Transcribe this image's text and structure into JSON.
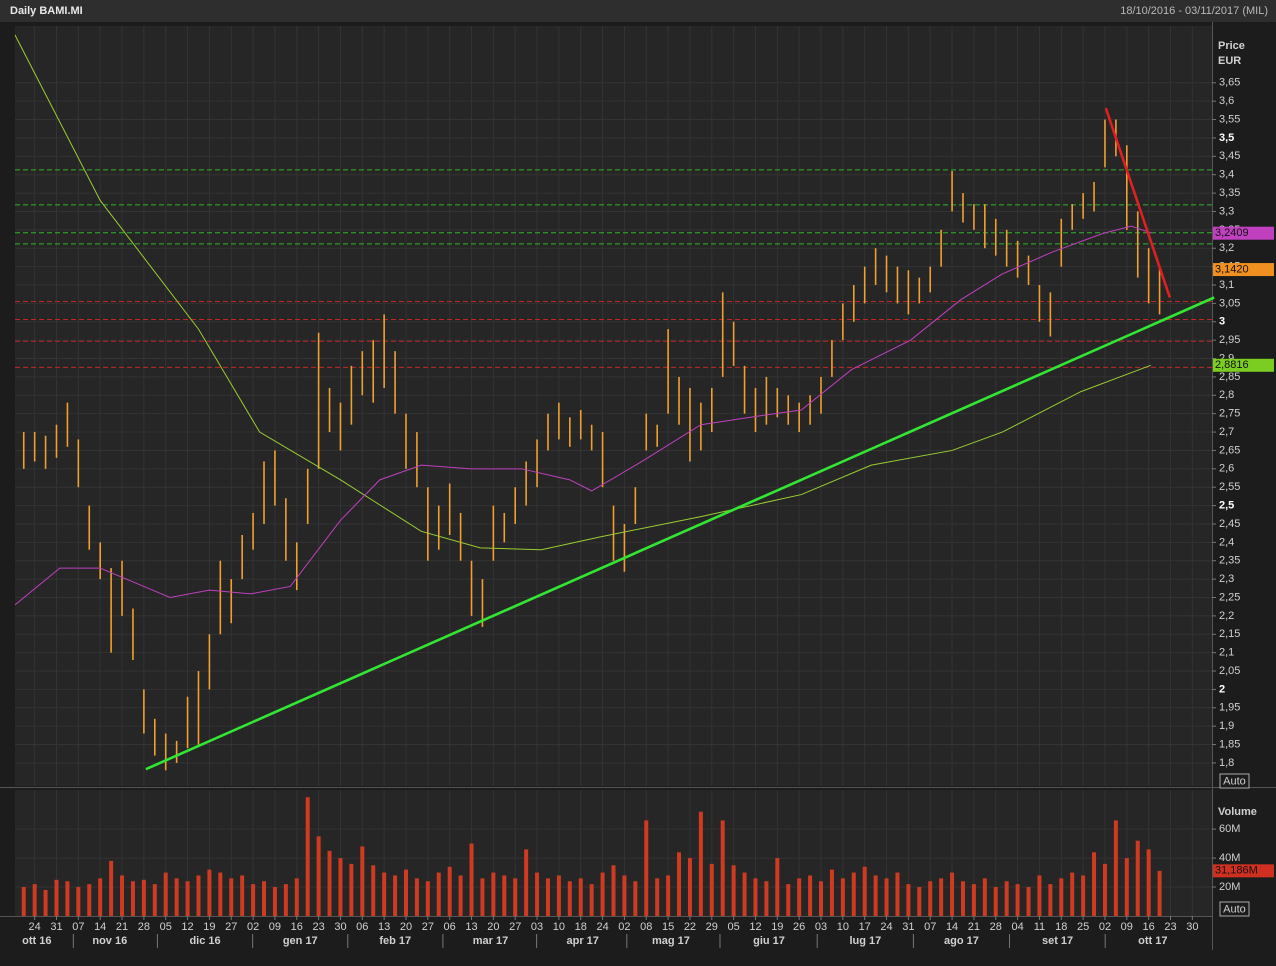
{
  "header": {
    "title": "Daily BAMI.MI",
    "range": "18/10/2016 - 03/11/2017 (MIL)"
  },
  "chart_data": [
    {
      "type": "ohlc",
      "y_label": "Price",
      "y_unit": "EUR",
      "color": "#f0a030",
      "grid": true,
      "xlim": [
        -0.9,
        53.9
      ],
      "ylim": [
        1.74,
        3.78
      ],
      "x": [
        -0.5,
        0,
        0.5,
        1,
        1.5,
        2,
        2.5,
        3,
        3.5,
        4,
        4.5,
        5,
        5.5,
        6,
        6.5,
        7,
        7.5,
        8,
        8.5,
        9,
        9.5,
        10,
        10.5,
        11,
        11.5,
        12,
        12.5,
        13,
        13.5,
        14,
        14.5,
        15,
        15.5,
        16,
        16.5,
        17,
        17.5,
        18,
        18.5,
        19,
        19.5,
        20,
        20.5,
        21,
        21.5,
        22,
        22.5,
        23,
        23.5,
        24,
        24.5,
        25,
        25.5,
        26,
        26.5,
        27,
        27.5,
        28,
        28.5,
        29,
        29.5,
        30,
        30.5,
        31,
        31.5,
        32,
        32.5,
        33,
        33.5,
        34,
        34.5,
        35,
        35.5,
        36,
        36.5,
        37,
        37.5,
        38,
        38.5,
        39,
        39.5,
        40,
        40.5,
        41,
        41.5,
        42,
        42.5,
        43,
        43.5,
        44,
        44.5,
        45,
        45.5,
        46,
        46.5,
        47,
        47.5,
        48,
        48.5,
        49,
        49.5,
        50,
        50.5,
        51,
        51.5
      ],
      "high": [
        2.7,
        2.7,
        2.69,
        2.72,
        2.78,
        2.68,
        2.5,
        2.4,
        2.33,
        2.35,
        2.22,
        2.0,
        1.92,
        1.88,
        1.86,
        1.98,
        2.05,
        2.15,
        2.35,
        2.3,
        2.42,
        2.48,
        2.62,
        2.65,
        2.52,
        2.4,
        2.6,
        2.97,
        2.82,
        2.78,
        2.88,
        2.92,
        2.95,
        3.02,
        2.92,
        2.75,
        2.7,
        2.55,
        2.5,
        2.56,
        2.48,
        2.35,
        2.3,
        2.5,
        2.48,
        2.55,
        2.62,
        2.68,
        2.75,
        2.78,
        2.74,
        2.76,
        2.72,
        2.7,
        2.5,
        2.45,
        2.55,
        2.75,
        2.72,
        2.98,
        2.85,
        2.82,
        2.78,
        2.82,
        3.08,
        3.0,
        2.88,
        2.82,
        2.85,
        2.82,
        2.8,
        2.78,
        2.8,
        2.85,
        2.95,
        3.05,
        3.1,
        3.15,
        3.2,
        3.18,
        3.15,
        3.14,
        3.12,
        3.15,
        3.25,
        3.41,
        3.35,
        3.32,
        3.32,
        3.28,
        3.25,
        3.22,
        3.18,
        3.1,
        3.08,
        3.28,
        3.32,
        3.35,
        3.38,
        3.55,
        3.55,
        3.48,
        3.3,
        3.2,
        3.15
      ],
      "low": [
        2.6,
        2.62,
        2.6,
        2.63,
        2.66,
        2.55,
        2.38,
        2.3,
        2.1,
        2.2,
        2.08,
        1.88,
        1.82,
        1.78,
        1.8,
        1.84,
        1.85,
        2.0,
        2.15,
        2.18,
        2.3,
        2.38,
        2.45,
        2.5,
        2.35,
        2.27,
        2.45,
        2.6,
        2.7,
        2.65,
        2.72,
        2.8,
        2.78,
        2.82,
        2.75,
        2.6,
        2.55,
        2.35,
        2.38,
        2.42,
        2.35,
        2.2,
        2.17,
        2.35,
        2.4,
        2.45,
        2.5,
        2.55,
        2.65,
        2.68,
        2.66,
        2.68,
        2.65,
        2.55,
        2.35,
        2.32,
        2.45,
        2.65,
        2.66,
        2.75,
        2.72,
        2.62,
        2.65,
        2.7,
        2.85,
        2.88,
        2.75,
        2.7,
        2.72,
        2.74,
        2.72,
        2.7,
        2.72,
        2.75,
        2.85,
        2.95,
        3.0,
        3.05,
        3.1,
        3.08,
        3.05,
        3.02,
        3.05,
        3.08,
        3.15,
        3.3,
        3.27,
        3.25,
        3.2,
        3.18,
        3.15,
        3.12,
        3.1,
        3.0,
        2.96,
        3.15,
        3.25,
        3.28,
        3.3,
        3.42,
        3.45,
        3.25,
        3.12,
        3.05,
        3.02
      ],
      "yticks": [
        {
          "value": 1.8,
          "label": "1,8"
        },
        {
          "value": 1.85,
          "label": "1,85"
        },
        {
          "value": 1.9,
          "label": "1,9"
        },
        {
          "value": 1.95,
          "label": "1,95"
        },
        2,
        {
          "value": 2.05,
          "label": "2,05"
        },
        {
          "value": 2.1,
          "label": "2,1"
        },
        {
          "value": 2.15,
          "label": "2,15"
        },
        {
          "value": 2.2,
          "label": "2,2"
        },
        {
          "value": 2.25,
          "label": "2,25"
        },
        {
          "value": 2.3,
          "label": "2,3"
        },
        {
          "value": 2.35,
          "label": "2,35"
        },
        {
          "value": 2.4,
          "label": "2,4"
        },
        {
          "value": 2.45,
          "label": "2,45"
        },
        {
          "value": 2.5,
          "label": "2,5"
        },
        {
          "value": 2.55,
          "label": "2,55"
        },
        {
          "value": 2.6,
          "label": "2,6"
        },
        {
          "value": 2.65,
          "label": "2,65"
        },
        {
          "value": 2.7,
          "label": "2,7"
        },
        {
          "value": 2.75,
          "label": "2,75"
        },
        {
          "value": 2.8,
          "label": "2,8"
        },
        {
          "value": 2.85,
          "label": "2,85"
        },
        {
          "value": 2.9,
          "label": "2,9"
        },
        {
          "value": 2.95,
          "label": "2,95"
        },
        3,
        {
          "value": 3.05,
          "label": "3,05"
        },
        {
          "value": 3.1,
          "label": "3,1"
        },
        {
          "value": 3.15,
          "label": "3,15"
        },
        {
          "value": 3.2,
          "label": "3,2"
        },
        {
          "value": 3.25,
          "label": "3,25"
        },
        {
          "value": 3.3,
          "label": "3,3"
        },
        {
          "value": 3.35,
          "label": "3,35"
        },
        {
          "value": 3.4,
          "label": "3,4"
        },
        {
          "value": 3.45,
          "label": "3,45"
        },
        {
          "value": 3.5,
          "label": "3,5"
        },
        {
          "value": 3.55,
          "label": "3,55"
        },
        {
          "value": 3.6,
          "label": "3,6"
        },
        {
          "value": 3.65,
          "label": "3,65"
        }
      ],
      "lines": [
        {
          "color": "#9acd32",
          "x": [
            -0.9,
            3,
            7.5,
            10.3,
            14,
            17.7,
            20.4,
            23.2,
            25.9,
            30.5,
            35.1,
            38.3,
            42,
            44.3,
            47.9,
            51.1
          ],
          "values": [
            3.78,
            3.33,
            2.98,
            2.7,
            2.57,
            2.43,
            2.385,
            2.38,
            2.415,
            2.47,
            2.53,
            2.61,
            2.65,
            2.7,
            2.81,
            2.8816
          ]
        },
        {
          "color": "#c040c0",
          "x": [
            -0.9,
            1.15,
            3,
            6.2,
            8,
            9.9,
            11.7,
            14,
            15.8,
            17.7,
            20,
            22.3,
            24.5,
            25.5,
            27.8,
            30.5,
            33.3,
            35.1,
            37.4,
            40.1,
            42.4,
            44.3,
            46.6,
            48.9,
            50.2,
            51.15
          ],
          "values": [
            2.23,
            2.33,
            2.33,
            2.25,
            2.27,
            2.26,
            2.28,
            2.46,
            2.57,
            2.61,
            2.6,
            2.6,
            2.57,
            2.54,
            2.62,
            2.72,
            2.745,
            2.76,
            2.87,
            2.95,
            3.06,
            3.13,
            3.19,
            3.24,
            3.26,
            3.2409
          ]
        }
      ],
      "trendlines": [
        {
          "color": "#33e633",
          "x": [
            5.09,
            54
          ],
          "values": [
            1.783,
            3.066
          ]
        },
        {
          "color": "#e02020",
          "x": [
            49.04,
            51.97
          ],
          "values": [
            3.581,
            3.066
          ]
        }
      ],
      "hlines": [
        {
          "value": 3.413,
          "color": "#2fb52f"
        },
        {
          "value": 3.318,
          "color": "#2fb52f"
        },
        {
          "value": 3.242,
          "color": "#2fb52f"
        },
        {
          "value": 3.212,
          "color": "#2fb52f"
        },
        {
          "value": 3.055,
          "color": "#c02828"
        },
        {
          "value": 3.006,
          "color": "#c02828"
        },
        {
          "value": 2.947,
          "color": "#c02828"
        },
        {
          "value": 2.876,
          "color": "#c02828"
        }
      ],
      "markers": [
        {
          "value": 3.2409,
          "label": "3,2409",
          "color": "#c040c0"
        },
        {
          "value": 3.142,
          "label": "3,1420",
          "color": "#f09020"
        },
        {
          "value": 2.8816,
          "label": "2,8816",
          "color": "#7ccd22"
        }
      ],
      "scale_button": "Auto"
    },
    {
      "type": "bar",
      "y_label": "Volume",
      "color": "#d03a20",
      "ylim": [
        0,
        87
      ],
      "values": [
        20,
        22,
        18,
        25,
        24,
        20,
        22,
        26,
        38,
        28,
        24,
        25,
        22,
        30,
        26,
        24,
        28,
        32,
        30,
        26,
        28,
        22,
        24,
        20,
        22,
        26,
        82,
        55,
        45,
        40,
        36,
        48,
        35,
        30,
        28,
        32,
        26,
        24,
        30,
        34,
        28,
        50,
        26,
        30,
        28,
        26,
        46,
        30,
        26,
        28,
        24,
        26,
        22,
        30,
        35,
        28,
        24,
        66,
        26,
        28,
        44,
        40,
        72,
        36,
        66,
        35,
        30,
        26,
        24,
        40,
        22,
        26,
        28,
        24,
        32,
        26,
        30,
        34,
        28,
        26,
        30,
        22,
        20,
        24,
        26,
        30,
        24,
        22,
        26,
        20,
        24,
        22,
        20,
        28,
        22,
        26,
        30,
        28,
        44,
        36,
        66,
        40,
        52,
        46,
        31.186
      ],
      "yticks": [
        {
          "value": 20,
          "label": "20M"
        },
        {
          "value": 40,
          "label": "40M"
        },
        {
          "value": 60,
          "label": "60M"
        }
      ],
      "markers": [
        {
          "value": 31.186,
          "label": "31,186M",
          "color": "#d03020"
        }
      ],
      "scale_button": "Auto",
      "xticks": [
        {
          "value": 0,
          "label": "24"
        },
        {
          "value": 1,
          "label": "31"
        },
        {
          "value": 2,
          "label": "07"
        },
        {
          "value": 3,
          "label": "14"
        },
        {
          "value": 4,
          "label": "21"
        },
        {
          "value": 5,
          "label": "28"
        },
        {
          "value": 6,
          "label": "05"
        },
        {
          "value": 7,
          "label": "12"
        },
        {
          "value": 8,
          "label": "19"
        },
        {
          "value": 9,
          "label": "27"
        },
        {
          "value": 10,
          "label": "02"
        },
        {
          "value": 11,
          "label": "09"
        },
        {
          "value": 12,
          "label": "16"
        },
        {
          "value": 13,
          "label": "23"
        },
        {
          "value": 14,
          "label": "30"
        },
        {
          "value": 15,
          "label": "06"
        },
        {
          "value": 16,
          "label": "13"
        },
        {
          "value": 17,
          "label": "20"
        },
        {
          "value": 18,
          "label": "27"
        },
        {
          "value": 19,
          "label": "06"
        },
        {
          "value": 20,
          "label": "13"
        },
        {
          "value": 21,
          "label": "20"
        },
        {
          "value": 22,
          "label": "27"
        },
        {
          "value": 23,
          "label": "03"
        },
        {
          "value": 24,
          "label": "10"
        },
        {
          "value": 25,
          "label": "18"
        },
        {
          "value": 26,
          "label": "24"
        },
        {
          "value": 27,
          "label": "02"
        },
        {
          "value": 28,
          "label": "08"
        },
        {
          "value": 29,
          "label": "15"
        },
        {
          "value": 30,
          "label": "22"
        },
        {
          "value": 31,
          "label": "29"
        },
        {
          "value": 32,
          "label": "05"
        },
        {
          "value": 33,
          "label": "12"
        },
        {
          "value": 34,
          "label": "19"
        },
        {
          "value": 35,
          "label": "26"
        },
        {
          "value": 36,
          "label": "03"
        },
        {
          "value": 37,
          "label": "10"
        },
        {
          "value": 38,
          "label": "17"
        },
        {
          "value": 39,
          "label": "24"
        },
        {
          "value": 40,
          "label": "31"
        },
        {
          "value": 41,
          "label": "07"
        },
        {
          "value": 42,
          "label": "14"
        },
        {
          "value": 43,
          "label": "21"
        },
        {
          "value": 44,
          "label": "28"
        },
        {
          "value": 45,
          "label": "04"
        },
        {
          "value": 46,
          "label": "11"
        },
        {
          "value": 47,
          "label": "18"
        },
        {
          "value": 48,
          "label": "25"
        },
        {
          "value": 49,
          "label": "02"
        },
        {
          "value": 50,
          "label": "09"
        },
        {
          "value": 51,
          "label": "16"
        },
        {
          "value": 52,
          "label": "23"
        },
        {
          "value": 53,
          "label": "30"
        }
      ],
      "month_labels": [
        {
          "value": 0.1,
          "label": "ott 16"
        },
        {
          "value": 3.44,
          "label": "nov 16"
        },
        {
          "value": 7.8,
          "label": "dic 16"
        },
        {
          "value": 12.16,
          "label": "gen 17"
        },
        {
          "value": 16.51,
          "label": "feb 17"
        },
        {
          "value": 20.87,
          "label": "mar 17"
        },
        {
          "value": 25.09,
          "label": "apr 17"
        },
        {
          "value": 29.13,
          "label": "mag 17"
        },
        {
          "value": 33.62,
          "label": "giu 17"
        },
        {
          "value": 38.03,
          "label": "lug 17"
        },
        {
          "value": 42.43,
          "label": "ago 17"
        },
        {
          "value": 46.83,
          "label": "set 17"
        },
        {
          "value": 51.19,
          "label": "ott 17"
        }
      ]
    }
  ]
}
